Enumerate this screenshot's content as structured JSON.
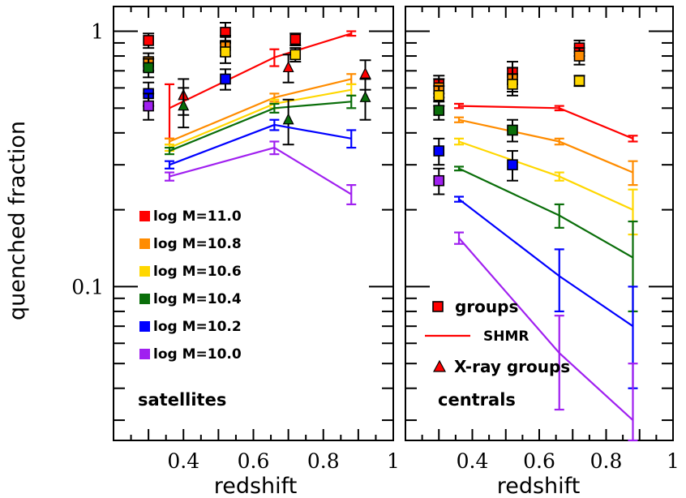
{
  "chart_data": [
    {
      "type": "scatter",
      "panel": "left",
      "panel_label": "satellites",
      "xlabel": "redshift",
      "ylabel": "quenched fraction",
      "xlim": [
        0.2,
        1.0
      ],
      "ylim": [
        0.025,
        1.25
      ],
      "y_scale": "log",
      "x_ticks": [
        0.4,
        0.6,
        0.8,
        1.0
      ],
      "x_tick_labels": [
        "0.4",
        "0.6",
        "0.8",
        "1"
      ],
      "y_ticks": [
        0.1,
        1
      ],
      "y_tick_labels": [
        "0.1",
        "1"
      ],
      "legend_position": "lower-left",
      "series": [
        {
          "name": "log M=11.0",
          "color": "#ff0000",
          "model": {
            "x": [
              0.36,
              0.66,
              0.88
            ],
            "y": [
              0.5,
              0.79,
              0.98
            ],
            "err": [
              0.12,
              0.06,
              0.02
            ]
          },
          "groups": {
            "x": [
              0.3,
              0.52,
              0.72
            ],
            "y": [
              0.92,
              0.99,
              0.93
            ],
            "err": [
              0.06,
              0.09,
              0.05
            ]
          },
          "xray_groups": {
            "x": [
              0.4,
              0.7,
              0.92
            ],
            "y": [
              0.56,
              0.72,
              0.68
            ],
            "err": [
              0.09,
              0.09,
              0.09
            ]
          }
        },
        {
          "name": "log M=10.8",
          "color": "#ff8c00",
          "model": {
            "x": [
              0.36,
              0.66,
              0.88
            ],
            "y": [
              0.37,
              0.55,
              0.65
            ],
            "err": [
              0.01,
              0.02,
              0.03
            ]
          },
          "groups": {
            "x": [
              0.3,
              0.52
            ],
            "y": [
              0.76,
              0.88
            ],
            "err": [
              0.06,
              0.08
            ]
          }
        },
        {
          "name": "log M=10.6",
          "color": "#ffd700",
          "model": {
            "x": [
              0.36,
              0.66,
              0.88
            ],
            "y": [
              0.35,
              0.52,
              0.59
            ],
            "err": [
              0.01,
              0.02,
              0.03
            ]
          },
          "groups": {
            "x": [
              0.52,
              0.72
            ],
            "y": [
              0.83,
              0.81
            ],
            "err": [
              0.08,
              0.05
            ]
          }
        },
        {
          "name": "log M=10.4",
          "color": "#0a6e0a",
          "model": {
            "x": [
              0.36,
              0.66,
              0.88
            ],
            "y": [
              0.34,
              0.5,
              0.53
            ],
            "err": [
              0.01,
              0.02,
              0.03
            ]
          },
          "groups": {
            "x": [
              0.3
            ],
            "y": [
              0.72
            ],
            "err": [
              0.06
            ]
          },
          "xray_groups": {
            "x": [
              0.4,
              0.7,
              0.92
            ],
            "y": [
              0.51,
              0.45,
              0.55
            ],
            "err": [
              0.09,
              0.09,
              0.1
            ]
          }
        },
        {
          "name": "log M=10.2",
          "color": "#0000ff",
          "model": {
            "x": [
              0.36,
              0.66,
              0.88
            ],
            "y": [
              0.3,
              0.43,
              0.38
            ],
            "err": [
              0.01,
              0.02,
              0.03
            ]
          },
          "groups": {
            "x": [
              0.3,
              0.52
            ],
            "y": [
              0.57,
              0.65
            ],
            "err": [
              0.06,
              0.06
            ]
          }
        },
        {
          "name": "log M=10.0",
          "color": "#a020f0",
          "model": {
            "x": [
              0.36,
              0.66,
              0.88
            ],
            "y": [
              0.27,
              0.35,
              0.23
            ],
            "err": [
              0.01,
              0.02,
              0.02
            ]
          },
          "groups": {
            "x": [
              0.3
            ],
            "y": [
              0.51
            ],
            "err": [
              0.06
            ]
          }
        }
      ]
    },
    {
      "type": "scatter",
      "panel": "right",
      "panel_label": "centrals",
      "xlabel": "redshift",
      "xlim": [
        0.2,
        1.0
      ],
      "ylim": [
        0.025,
        1.25
      ],
      "y_scale": "log",
      "x_ticks": [
        0.4,
        0.6,
        0.8,
        1.0
      ],
      "x_tick_labels": [
        "0.4",
        "0.6",
        "0.8",
        "1"
      ],
      "legend_position": "lower-left",
      "legend": [
        {
          "label": "groups",
          "marker": "square"
        },
        {
          "label": "SHMR",
          "marker": "line"
        },
        {
          "label": "X-ray groups",
          "marker": "triangle"
        }
      ],
      "series": [
        {
          "name": "log M=11.0",
          "color": "#ff0000",
          "model": {
            "x": [
              0.36,
              0.66,
              0.88
            ],
            "y": [
              0.51,
              0.5,
              0.38
            ],
            "err": [
              0.01,
              0.01,
              0.01
            ]
          },
          "groups": {
            "x": [
              0.3,
              0.52,
              0.72
            ],
            "y": [
              0.62,
              0.69,
              0.86
            ],
            "err": [
              0.05,
              0.07,
              0.06
            ]
          }
        },
        {
          "name": "log M=10.8",
          "color": "#ff8c00",
          "model": {
            "x": [
              0.36,
              0.66,
              0.88
            ],
            "y": [
              0.45,
              0.37,
              0.28
            ],
            "err": [
              0.01,
              0.01,
              0.03
            ]
          },
          "groups": {
            "x": [
              0.3,
              0.52,
              0.72
            ],
            "y": [
              0.6,
              0.65,
              0.8
            ],
            "err": [
              0.05,
              0.07,
              0.06
            ]
          }
        },
        {
          "name": "log M=10.6",
          "color": "#ffd700",
          "model": {
            "x": [
              0.36,
              0.66,
              0.88
            ],
            "y": [
              0.37,
              0.27,
              0.2
            ],
            "err": [
              0.01,
              0.01,
              0.04
            ]
          },
          "groups": {
            "x": [
              0.3,
              0.52,
              0.72
            ],
            "y": [
              0.56,
              0.62,
              0.64
            ],
            "err": [
              0.05,
              0.06,
              0.03
            ]
          }
        },
        {
          "name": "log M=10.4",
          "color": "#0a6e0a",
          "model": {
            "x": [
              0.36,
              0.66,
              0.88
            ],
            "y": [
              0.29,
              0.19,
              0.13
            ],
            "err": [
              0.005,
              0.02,
              0.05
            ]
          },
          "groups": {
            "x": [
              0.3,
              0.52
            ],
            "y": [
              0.49,
              0.41
            ],
            "err": [
              0.04,
              0.04
            ]
          }
        },
        {
          "name": "log M=10.2",
          "color": "#0000ff",
          "model": {
            "x": [
              0.36,
              0.66,
              0.88
            ],
            "y": [
              0.22,
              0.11,
              0.07
            ],
            "err": [
              0.005,
              0.03,
              0.03
            ]
          },
          "groups": {
            "x": [
              0.3,
              0.52
            ],
            "y": [
              0.34,
              0.3
            ],
            "err": [
              0.04,
              0.04
            ]
          }
        },
        {
          "name": "log M=10.0",
          "color": "#a020f0",
          "model": {
            "x": [
              0.36,
              0.66,
              0.88
            ],
            "y": [
              0.155,
              0.055,
              0.03
            ],
            "err": [
              0.008,
              0.022,
              0.02
            ]
          },
          "groups": {
            "x": [
              0.3
            ],
            "y": [
              0.26
            ],
            "err": [
              0.03
            ]
          }
        }
      ]
    }
  ]
}
